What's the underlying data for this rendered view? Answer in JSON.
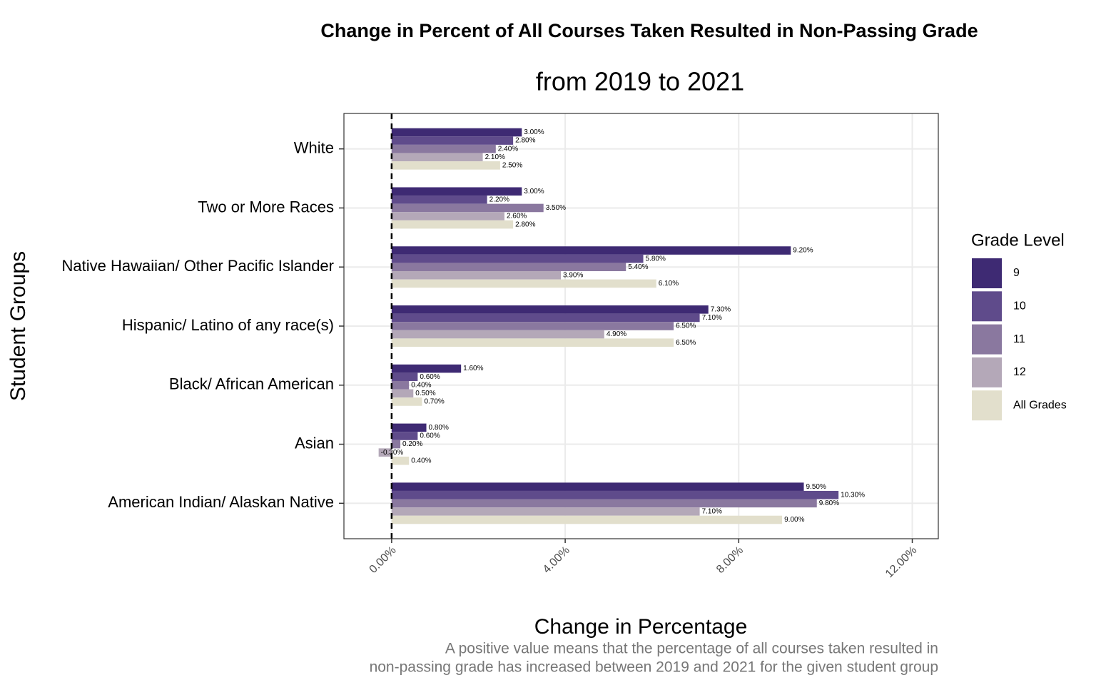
{
  "chart_data": {
    "type": "hbar",
    "title": "Change in Percent of All Courses Taken Resulted in Non-Passing Grade",
    "subtitle": "from 2019 to 2021",
    "x_label": "Change in Percentage",
    "y_label": "Student Groups",
    "caption": [
      "A positive value means that the percentage of all courses taken resulted in ",
      "non-passing grade has increased between 2019 and 2021 for the given student group"
    ],
    "legend_title": "Grade Level",
    "categories": [
      "White",
      "Two or More Races",
      "Native Hawaiian/ Other Pacific Islander",
      "Hispanic/ Latino of any race(s)",
      "Black/ African American",
      "Asian",
      "American Indian/ Alaskan Native"
    ],
    "series": [
      {
        "name": "9",
        "color": "#3e2a73",
        "values": [
          3.0,
          3.0,
          9.2,
          7.3,
          1.6,
          0.8,
          9.5
        ],
        "value_labels": [
          "3.00%",
          "3.00%",
          "9.20%",
          "7.30%",
          "1.60%",
          "0.80%",
          "9.50%"
        ]
      },
      {
        "name": "10",
        "color": "#5f4b8b",
        "values": [
          2.8,
          2.2,
          5.8,
          7.1,
          0.6,
          0.6,
          10.3
        ],
        "value_labels": [
          "2.80%",
          "2.20%",
          "5.80%",
          "7.10%",
          "0.60%",
          "0.60%",
          "10.30%"
        ]
      },
      {
        "name": "11",
        "color": "#8a789f",
        "values": [
          2.4,
          3.5,
          5.4,
          6.5,
          0.4,
          0.2,
          9.8
        ],
        "value_labels": [
          "2.40%",
          "3.50%",
          "5.40%",
          "6.50%",
          "0.40%",
          "0.20%",
          "9.80%"
        ]
      },
      {
        "name": "12",
        "color": "#b4a8b8",
        "values": [
          2.1,
          2.6,
          3.9,
          4.9,
          0.5,
          -0.3,
          7.1
        ],
        "value_labels": [
          "2.10%",
          "2.60%",
          "3.90%",
          "4.90%",
          "0.50%",
          "-0.30%",
          "7.10%"
        ]
      },
      {
        "name": "All Grades",
        "color": "#e2dfcc",
        "values": [
          2.5,
          2.8,
          6.1,
          6.5,
          0.7,
          0.4,
          9.0
        ],
        "value_labels": [
          "2.50%",
          "2.80%",
          "6.10%",
          "6.50%",
          "0.70%",
          "0.40%",
          "9.00%"
        ]
      }
    ],
    "xlim": [
      -1.1,
      12.6
    ],
    "xticks": [
      {
        "value": 0,
        "label": "0.00%"
      },
      {
        "value": 4,
        "label": "4.00%"
      },
      {
        "value": 8,
        "label": "8.00%"
      },
      {
        "value": 12,
        "label": "12.00%"
      }
    ],
    "reference_line": 0,
    "grid": true
  }
}
